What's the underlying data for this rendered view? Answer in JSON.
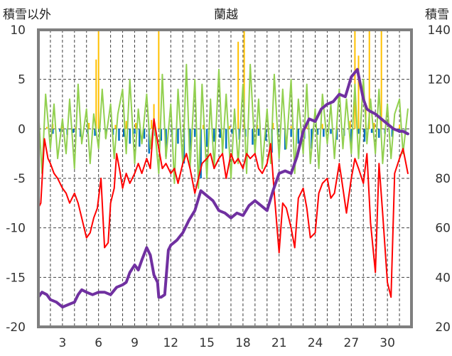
{
  "chart_data": {
    "type": "line",
    "title": "蘭越",
    "left_axis_label": "積雪以外",
    "right_axis_label": "積雪",
    "left_ylim": [
      -20,
      10
    ],
    "left_yticks": [
      10,
      5,
      0,
      -5,
      -10,
      -15,
      -20
    ],
    "right_ylim": [
      20,
      140
    ],
    "right_yticks": [
      140,
      120,
      100,
      80,
      60,
      40,
      20
    ],
    "xlim": [
      1.0,
      32.0
    ],
    "xtick_labels": [
      "3",
      "6",
      "9",
      "12",
      "15",
      "18",
      "21",
      "24",
      "27",
      "30"
    ],
    "xticks": [
      3,
      6,
      9,
      12,
      15,
      18,
      21,
      24,
      27,
      30
    ],
    "day_gridlines": [
      2,
      3,
      4,
      5,
      6,
      7,
      8,
      9,
      10,
      11,
      12,
      13,
      14,
      15,
      16,
      17,
      18,
      19,
      20,
      21,
      22,
      23,
      24,
      25,
      26,
      27,
      28,
      29,
      30,
      31
    ],
    "grid": true,
    "colors": {
      "temperature": "#ff0000",
      "snow_depth": "#7030a0",
      "wind": "#92d050",
      "precipitation": "#ffc000",
      "snow_change": "#0070c0",
      "frame": "#7f7f7f",
      "grid": "#404040"
    },
    "series": [
      {
        "key": "temperature",
        "axis": "left",
        "x": [
          1.0,
          1.2,
          1.5,
          1.8,
          2.0,
          2.3,
          2.6,
          3.0,
          3.3,
          3.6,
          4.0,
          4.3,
          4.6,
          5.0,
          5.3,
          5.6,
          5.9,
          6.2,
          6.5,
          6.8,
          7.0,
          7.3,
          7.5,
          7.8,
          8.0,
          8.3,
          8.6,
          9.0,
          9.3,
          9.6,
          10.0,
          10.3,
          10.6,
          11.0,
          11.3,
          11.6,
          12.0,
          12.3,
          12.6,
          13.0,
          13.3,
          13.6,
          14.0,
          14.3,
          14.6,
          15.0,
          15.3,
          15.6,
          16.0,
          16.3,
          16.6,
          17.0,
          17.3,
          17.6,
          18.0,
          18.3,
          18.6,
          19.0,
          19.3,
          19.6,
          20.0,
          20.3,
          20.6,
          21.0,
          21.3,
          21.6,
          22.0,
          22.3,
          22.6,
          23.0,
          23.3,
          23.6,
          24.0,
          24.3,
          24.6,
          25.0,
          25.3,
          25.6,
          26.0,
          26.3,
          26.6,
          27.0,
          27.3,
          27.6,
          28.0,
          28.3,
          28.6,
          29.0,
          29.3,
          29.6,
          30.0,
          30.3,
          30.6,
          31.0,
          31.3,
          31.7
        ],
        "values": [
          -8,
          -7.5,
          -1,
          -3,
          -3.5,
          -4.5,
          -5,
          -6,
          -6.5,
          -7.5,
          -6.5,
          -7.5,
          -9,
          -11,
          -10.5,
          -9,
          -8,
          -5,
          -12,
          -11.5,
          -7.5,
          -6,
          -2.5,
          -4.5,
          -6,
          -4.5,
          -5.5,
          -4.5,
          -3.5,
          -4.5,
          -3,
          -4,
          1,
          -2,
          -4,
          -3.5,
          -4.5,
          -4,
          -5.5,
          -3.5,
          -2.5,
          -4,
          -6.5,
          -5,
          -3.5,
          -3,
          -2.5,
          -4,
          -3,
          -2.5,
          -5,
          -2.5,
          -3.5,
          -3,
          -4,
          -2.5,
          -3,
          -2.5,
          -4,
          -4.5,
          -3.5,
          -1.5,
          -6.5,
          -12.5,
          -7.5,
          -8,
          -10,
          -12,
          -7,
          -6,
          -8,
          -11,
          -10.5,
          -6.5,
          -5.5,
          -5,
          -7,
          -6.5,
          -3.5,
          -6,
          -8.5,
          -5,
          -3,
          -4,
          -5.5,
          -2.5,
          -9.5,
          -14.5,
          -3.5,
          -8.5,
          -15.5,
          -17,
          -4.5,
          -3,
          -2,
          -4.5
        ]
      },
      {
        "key": "snow_depth",
        "axis": "right",
        "x": [
          1.0,
          1.3,
          1.7,
          2.0,
          2.5,
          3.0,
          3.5,
          4.0,
          4.3,
          4.6,
          5.0,
          5.5,
          6.0,
          6.5,
          7.0,
          7.5,
          8.0,
          8.3,
          8.6,
          9.0,
          9.3,
          9.6,
          10.0,
          10.3,
          10.6,
          10.9,
          11.0,
          11.2,
          11.5,
          11.8,
          12.0,
          12.5,
          13.0,
          13.5,
          14.0,
          14.5,
          15.0,
          15.5,
          16.0,
          16.5,
          17.0,
          17.5,
          18.0,
          18.5,
          19.0,
          19.5,
          20.0,
          20.5,
          21.0,
          21.5,
          22.0,
          22.5,
          23.0,
          23.5,
          24.0,
          24.5,
          25.0,
          25.5,
          26.0,
          26.5,
          27.0,
          27.5,
          28.0,
          28.3,
          28.6,
          29.0,
          29.5,
          30.0,
          30.5,
          31.0,
          31.3,
          31.7
        ],
        "values": [
          32,
          34,
          33,
          31,
          30,
          28,
          29,
          30,
          33,
          35,
          34,
          33,
          34,
          34,
          33,
          36,
          37,
          38,
          42,
          45,
          43,
          47,
          52,
          49,
          41,
          38,
          32,
          32,
          33,
          51,
          53,
          55,
          58,
          63,
          67,
          75,
          73,
          71,
          67,
          66,
          64,
          66,
          65,
          69,
          71,
          69,
          67,
          75,
          82,
          83,
          82,
          89,
          99,
          104,
          103,
          108,
          110,
          111,
          114,
          113,
          121,
          124,
          112,
          108,
          107,
          106,
          104,
          102,
          100,
          99,
          99,
          98
        ]
      },
      {
        "key": "wind",
        "axis": "left",
        "x": [
          1.0,
          1.3,
          1.6,
          2.0,
          2.3,
          2.6,
          3.0,
          3.3,
          3.6,
          4.0,
          4.3,
          4.6,
          5.0,
          5.3,
          5.6,
          6.0,
          6.3,
          6.6,
          7.0,
          7.3,
          7.6,
          8.0,
          8.3,
          8.6,
          9.0,
          9.3,
          9.6,
          10.0,
          10.3,
          10.6,
          11.0,
          11.3,
          11.6,
          12.0,
          12.3,
          12.6,
          13.0,
          13.3,
          13.6,
          14.0,
          14.3,
          14.6,
          15.0,
          15.3,
          15.6,
          16.0,
          16.3,
          16.6,
          17.0,
          17.3,
          17.6,
          18.0,
          18.3,
          18.6,
          19.0,
          19.3,
          19.6,
          20.0,
          20.3,
          20.6,
          21.0,
          21.3,
          21.6,
          22.0,
          22.3,
          22.6,
          23.0,
          23.3,
          23.6,
          24.0,
          24.3,
          24.6,
          25.0,
          25.3,
          25.6,
          26.0,
          26.3,
          26.6,
          27.0,
          27.3,
          27.6,
          28.0,
          28.3,
          28.6,
          29.0,
          29.3,
          29.6,
          30.0,
          30.3,
          30.6,
          31.0,
          31.3,
          31.7
        ],
        "values": [
          2,
          -4.5,
          3.5,
          -2,
          2.5,
          -3,
          1,
          -2.5,
          3,
          -4,
          4.5,
          -1.5,
          2,
          -3.5,
          1.5,
          -2,
          4,
          -1,
          2.5,
          -3,
          1.5,
          4,
          -2.5,
          5,
          -3.5,
          2,
          -1.5,
          3.5,
          -2,
          1,
          -4.5,
          5.5,
          -3,
          2.5,
          -5.5,
          4,
          -3.5,
          6.5,
          -4,
          5,
          -6,
          4.5,
          -5,
          3,
          -4,
          6,
          -2.5,
          3.5,
          -5,
          2,
          -3.5,
          4.5,
          -4.5,
          6.5,
          -2.5,
          3,
          -4,
          2,
          -3.5,
          5.5,
          -3,
          4,
          -2,
          5,
          -4.5,
          3,
          -2.5,
          4.5,
          -3.5,
          2,
          -4,
          3.5,
          -1.5,
          2.5,
          -3,
          4,
          -2,
          3,
          -2.5,
          4.5,
          -3,
          5,
          -1.5,
          3,
          -2.5,
          4,
          -3.5,
          2.5,
          -3,
          1.5,
          3,
          -2.5,
          2
        ]
      },
      {
        "key": "precipitation",
        "axis": "left",
        "x": [
          1.7,
          2.2,
          3.0,
          4.1,
          5.2,
          5.8,
          6.0,
          7.4,
          8.3,
          9.1,
          10.4,
          10.6,
          11.0,
          13.1,
          14.7,
          16.9,
          17.6,
          18.1,
          19.2,
          20.5,
          22.0,
          23.3,
          24.6,
          25.8,
          26.9,
          27.3,
          27.6,
          28.2,
          28.5,
          28.9,
          29.5,
          31.0
        ],
        "values": [
          0.2,
          0.5,
          0.3,
          0.2,
          0.6,
          7.0,
          10.0,
          0.4,
          0.8,
          0.6,
          0.9,
          2.5,
          10.0,
          0.5,
          0.4,
          0.3,
          8.8,
          10.0,
          0.4,
          0.6,
          0.3,
          0.4,
          0.5,
          0.3,
          0.8,
          10.0,
          7.4,
          2.0,
          10.0,
          0.6,
          10.0,
          0.4
        ]
      },
      {
        "key": "snow_change",
        "axis": "left",
        "x": [
          2.2,
          2.8,
          3.4,
          3.9,
          4.5,
          5.1,
          5.7,
          6.1,
          6.6,
          7.2,
          7.7,
          8.1,
          8.6,
          9.0,
          9.4,
          9.8,
          10.2,
          10.7,
          11.2,
          11.6,
          12.1,
          12.6,
          13.1,
          13.6,
          14.0,
          14.5,
          15.0,
          15.6,
          16.1,
          16.6,
          17.1,
          17.7,
          18.2,
          18.8,
          19.3,
          19.9,
          20.4,
          20.9,
          21.5,
          22.0,
          22.6,
          23.1,
          23.7,
          24.2,
          24.7,
          25.3,
          25.8,
          26.4,
          27.0,
          27.6,
          28.1,
          28.7,
          29.3,
          29.8,
          30.4,
          31.0,
          31.5
        ],
        "values": [
          -0.5,
          -0.3,
          -0.6,
          -0.4,
          -0.8,
          -0.5,
          -0.7,
          -0.3,
          -0.9,
          -0.6,
          -1.2,
          -0.8,
          -1.5,
          -0.5,
          -1.8,
          -1.0,
          -2.5,
          -0.7,
          -1.2,
          -2.8,
          -0.6,
          -1.5,
          -3.5,
          -2.2,
          -0.8,
          -5.0,
          -1.8,
          -1.3,
          -0.9,
          -2.0,
          -0.5,
          -1.1,
          -0.8,
          -1.6,
          -0.7,
          -1.2,
          -2.4,
          -0.6,
          -2.1,
          -0.8,
          -1.5,
          -1.0,
          -2.0,
          -0.6,
          -0.8,
          -0.5,
          -1.1,
          -0.7,
          -2.0,
          -0.5,
          -1.3,
          -0.4,
          -0.9,
          -0.5,
          -0.8,
          -0.4,
          -0.6
        ]
      }
    ]
  }
}
